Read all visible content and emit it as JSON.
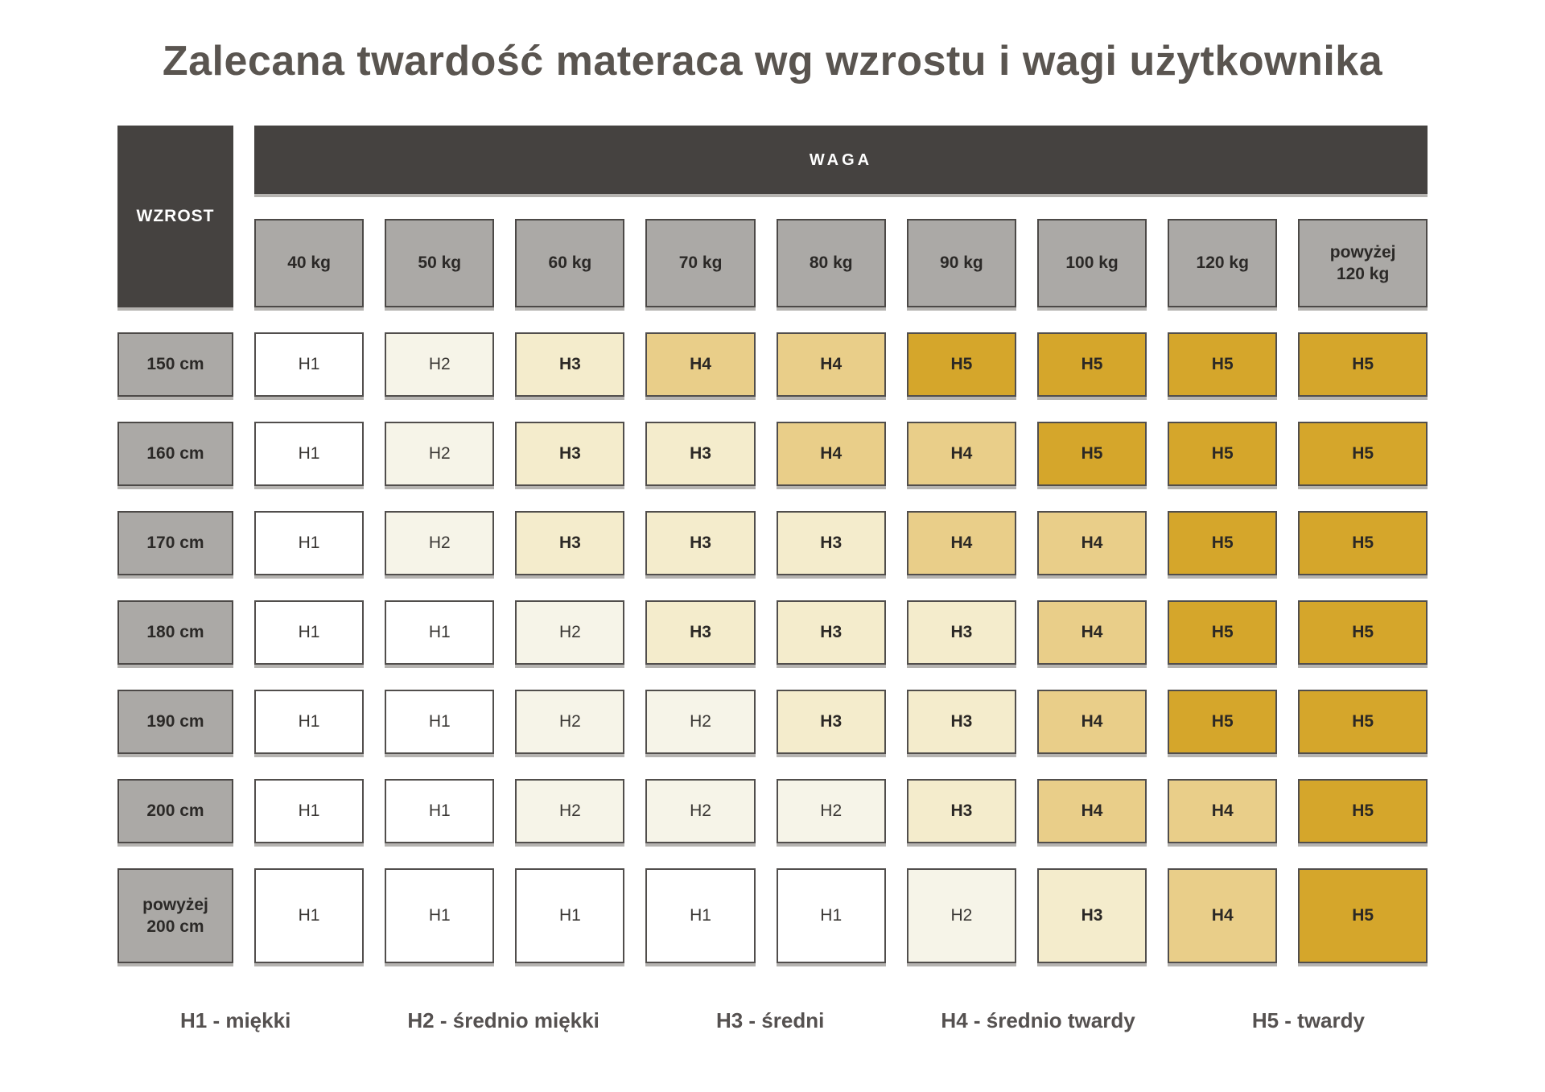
{
  "title": "Zalecana twardość materaca wg wzrostu i wagi użytkownika",
  "table": {
    "corner_label": "WZROST",
    "weight_header": "WAGA",
    "columns": [
      "40 kg",
      "50 kg",
      "60 kg",
      "70 kg",
      "80 kg",
      "90 kg",
      "100 kg",
      "120 kg",
      "powyżej\n120 kg"
    ],
    "rows": [
      {
        "label": "150 cm",
        "cells": [
          "H1",
          "H2",
          "H3",
          "H4",
          "H4",
          "H5",
          "H5",
          "H5",
          "H5"
        ]
      },
      {
        "label": "160 cm",
        "cells": [
          "H1",
          "H2",
          "H3",
          "H3",
          "H4",
          "H4",
          "H5",
          "H5",
          "H5"
        ]
      },
      {
        "label": "170 cm",
        "cells": [
          "H1",
          "H2",
          "H3",
          "H3",
          "H3",
          "H4",
          "H4",
          "H5",
          "H5"
        ]
      },
      {
        "label": "180 cm",
        "cells": [
          "H1",
          "H1",
          "H2",
          "H3",
          "H3",
          "H3",
          "H4",
          "H5",
          "H5"
        ]
      },
      {
        "label": "190 cm",
        "cells": [
          "H1",
          "H1",
          "H2",
          "H2",
          "H3",
          "H3",
          "H4",
          "H5",
          "H5"
        ]
      },
      {
        "label": "200 cm",
        "cells": [
          "H1",
          "H1",
          "H2",
          "H2",
          "H2",
          "H3",
          "H4",
          "H4",
          "H5"
        ]
      },
      {
        "label": "powyżej\n200 cm",
        "cells": [
          "H1",
          "H1",
          "H1",
          "H1",
          "H1",
          "H2",
          "H3",
          "H4",
          "H5"
        ]
      }
    ]
  },
  "legend": [
    "H1 - miękki",
    "H2 - średnio miękki",
    "H3 - średni",
    "H4 - średnio twardy",
    "H5 - twardy"
  ],
  "colors": {
    "H1": "#ffffff",
    "H2": "#f6f4e8",
    "H3": "#f4eccc",
    "H4": "#e9ce89",
    "H5": "#d5a62b",
    "header_dark": "#454240",
    "header_gray": "#aba9a6"
  },
  "bold_levels": [
    "H3",
    "H4",
    "H5"
  ]
}
